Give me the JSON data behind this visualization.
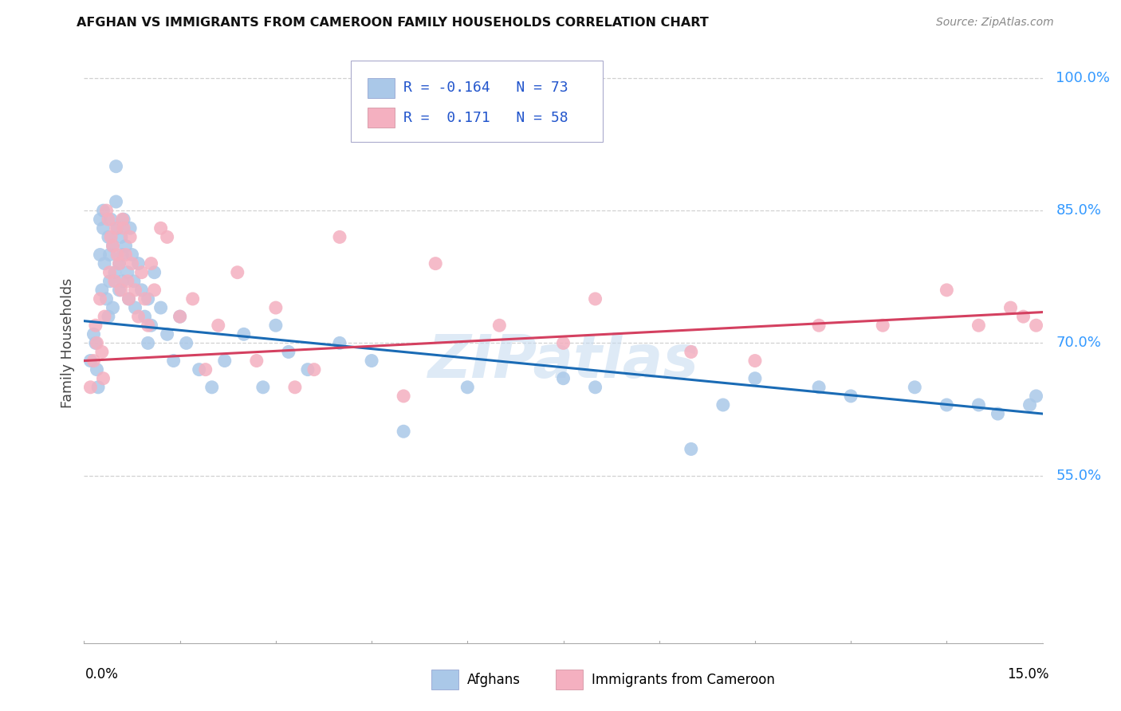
{
  "title": "AFGHAN VS IMMIGRANTS FROM CAMEROON FAMILY HOUSEHOLDS CORRELATION CHART",
  "source": "Source: ZipAtlas.com",
  "ylabel": "Family Households",
  "right_yticks": [
    55.0,
    70.0,
    85.0,
    100.0
  ],
  "xmin": 0.0,
  "xmax": 15.0,
  "ymin": 36.0,
  "ymax": 104.0,
  "blue_color": "#aac8e8",
  "pink_color": "#f4b0c0",
  "trendline_blue": "#1a6bb5",
  "trendline_pink": "#d44060",
  "watermark": "ZIPatlas",
  "watermark_color": "#c8dcf0",
  "blue_r": -0.164,
  "blue_n": 73,
  "pink_r": 0.171,
  "pink_n": 58,
  "blue_trend_x0": 0.0,
  "blue_trend_y0": 72.5,
  "blue_trend_x1": 15.0,
  "blue_trend_y1": 62.0,
  "pink_trend_x0": 0.0,
  "pink_trend_y0": 68.0,
  "pink_trend_x1": 15.0,
  "pink_trend_y1": 73.5,
  "blue_points_x": [
    0.1,
    0.15,
    0.18,
    0.2,
    0.22,
    0.25,
    0.25,
    0.28,
    0.3,
    0.3,
    0.32,
    0.35,
    0.38,
    0.38,
    0.4,
    0.4,
    0.42,
    0.45,
    0.45,
    0.48,
    0.5,
    0.5,
    0.52,
    0.55,
    0.55,
    0.58,
    0.6,
    0.6,
    0.62,
    0.65,
    0.68,
    0.7,
    0.72,
    0.75,
    0.78,
    0.8,
    0.85,
    0.9,
    0.95,
    1.0,
    1.0,
    1.05,
    1.1,
    1.2,
    1.3,
    1.4,
    1.5,
    1.6,
    1.8,
    2.0,
    2.2,
    2.5,
    2.8,
    3.0,
    3.2,
    3.5,
    4.0,
    4.5,
    5.0,
    6.0,
    7.5,
    8.0,
    9.5,
    10.0,
    10.5,
    11.5,
    12.0,
    13.0,
    13.5,
    14.0,
    14.3,
    14.8,
    14.9
  ],
  "blue_points_y": [
    68,
    71,
    70,
    67,
    65,
    84,
    80,
    76,
    85,
    83,
    79,
    75,
    82,
    73,
    80,
    77,
    84,
    81,
    74,
    78,
    86,
    90,
    83,
    79,
    76,
    82,
    80,
    77,
    84,
    81,
    78,
    75,
    83,
    80,
    77,
    74,
    79,
    76,
    73,
    70,
    75,
    72,
    78,
    74,
    71,
    68,
    73,
    70,
    67,
    65,
    68,
    71,
    65,
    72,
    69,
    67,
    70,
    68,
    60,
    65,
    66,
    65,
    58,
    63,
    66,
    65,
    64,
    65,
    63,
    63,
    62,
    63,
    64
  ],
  "pink_points_x": [
    0.1,
    0.15,
    0.18,
    0.2,
    0.25,
    0.28,
    0.3,
    0.32,
    0.35,
    0.38,
    0.4,
    0.42,
    0.45,
    0.48,
    0.5,
    0.52,
    0.55,
    0.58,
    0.6,
    0.62,
    0.65,
    0.68,
    0.7,
    0.72,
    0.75,
    0.8,
    0.85,
    0.9,
    0.95,
    1.0,
    1.05,
    1.1,
    1.2,
    1.3,
    1.5,
    1.7,
    1.9,
    2.1,
    2.4,
    2.7,
    3.0,
    3.3,
    3.6,
    4.0,
    5.0,
    5.5,
    6.5,
    7.5,
    8.0,
    9.5,
    10.5,
    11.5,
    12.5,
    13.5,
    14.0,
    14.5,
    14.7,
    14.9
  ],
  "pink_points_y": [
    65,
    68,
    72,
    70,
    75,
    69,
    66,
    73,
    85,
    84,
    78,
    82,
    81,
    77,
    83,
    80,
    79,
    76,
    84,
    83,
    80,
    77,
    75,
    82,
    79,
    76,
    73,
    78,
    75,
    72,
    79,
    76,
    83,
    82,
    73,
    75,
    67,
    72,
    78,
    68,
    74,
    65,
    67,
    82,
    64,
    79,
    72,
    70,
    75,
    69,
    68,
    72,
    72,
    76,
    72,
    74,
    73,
    72
  ]
}
